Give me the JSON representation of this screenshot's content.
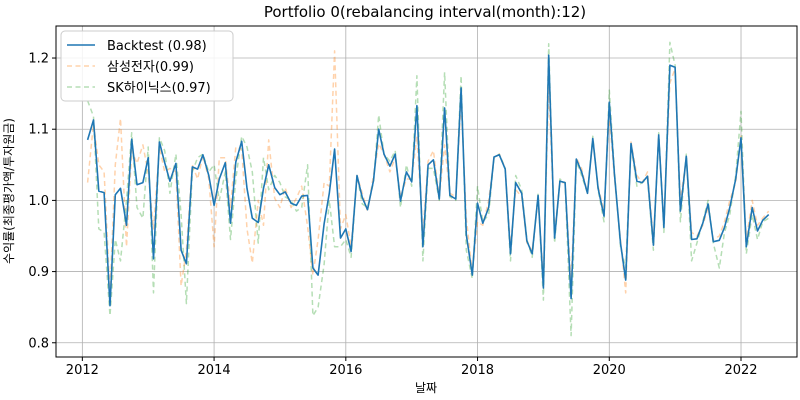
{
  "chart_data": {
    "type": "line",
    "title": "Portfolio 0(rebalancing interval(month):12)",
    "xlabel": "날짜",
    "ylabel": "수익률(최종평가액/투자원금)",
    "xlim": [
      2011.6,
      2022.85
    ],
    "ylim": [
      0.78,
      1.245
    ],
    "xticks": [
      2012,
      2014,
      2016,
      2018,
      2020,
      2022
    ],
    "yticks": [
      0.8,
      0.9,
      1.0,
      1.1,
      1.2
    ],
    "ytick_labels": [
      "0.8",
      "0.9",
      "1.0",
      "1.1",
      "1.2"
    ],
    "grid": true,
    "legend_position": "upper-left",
    "series": [
      {
        "name": "Backtest (0.98)",
        "color": "#1f77b4",
        "style": "solid",
        "x": [
          2012.08,
          2012.17,
          2012.25,
          2012.33,
          2012.42,
          2012.5,
          2012.58,
          2012.67,
          2012.75,
          2012.83,
          2012.92,
          2013.0,
          2013.08,
          2013.17,
          2013.25,
          2013.33,
          2013.42,
          2013.5,
          2013.58,
          2013.67,
          2013.75,
          2013.83,
          2013.92,
          2014.0,
          2014.08,
          2014.17,
          2014.25,
          2014.33,
          2014.42,
          2014.5,
          2014.58,
          2014.67,
          2014.75,
          2014.83,
          2014.92,
          2015.0,
          2015.08,
          2015.17,
          2015.25,
          2015.33,
          2015.42,
          2015.5,
          2015.58,
          2015.67,
          2015.75,
          2015.83,
          2015.92,
          2016.0,
          2016.08,
          2016.17,
          2016.25,
          2016.33,
          2016.42,
          2016.5,
          2016.58,
          2016.67,
          2016.75,
          2016.83,
          2016.92,
          2017.0,
          2017.08,
          2017.17,
          2017.25,
          2017.33,
          2017.42,
          2017.5,
          2017.58,
          2017.67,
          2017.75,
          2017.83,
          2017.92,
          2018.0,
          2018.08,
          2018.17,
          2018.25,
          2018.33,
          2018.42,
          2018.5,
          2018.58,
          2018.67,
          2018.75,
          2018.83,
          2018.92,
          2019.0,
          2019.08,
          2019.17,
          2019.25,
          2019.33,
          2019.42,
          2019.5,
          2019.58,
          2019.67,
          2019.75,
          2019.83,
          2019.92,
          2020.0,
          2020.08,
          2020.17,
          2020.25,
          2020.33,
          2020.42,
          2020.5,
          2020.58,
          2020.67,
          2020.75,
          2020.83,
          2020.92,
          2021.0,
          2021.08,
          2021.17,
          2021.25,
          2021.33,
          2021.42,
          2021.5,
          2021.58,
          2021.67,
          2021.75,
          2021.83,
          2021.92,
          2022.0,
          2022.08,
          2022.17,
          2022.25,
          2022.33,
          2022.42
        ],
        "values": [
          1.085,
          1.113,
          1.013,
          1.011,
          0.852,
          1.008,
          1.017,
          0.965,
          1.086,
          1.022,
          1.025,
          1.06,
          0.918,
          1.082,
          1.053,
          1.027,
          1.052,
          0.93,
          0.911,
          1.047,
          1.044,
          1.064,
          1.035,
          0.993,
          1.03,
          1.053,
          0.968,
          1.054,
          1.083,
          1.017,
          0.975,
          0.969,
          1.017,
          1.05,
          1.018,
          1.008,
          1.012,
          0.996,
          0.993,
          1.006,
          1.007,
          0.905,
          0.895,
          0.967,
          1.01,
          1.072,
          0.947,
          0.96,
          0.928,
          1.035,
          1.004,
          0.987,
          1.028,
          1.1,
          1.065,
          1.048,
          1.065,
          0.999,
          1.04,
          1.026,
          1.133,
          0.935,
          1.05,
          1.057,
          1.002,
          1.13,
          1.007,
          1.002,
          1.158,
          0.952,
          0.895,
          0.996,
          0.968,
          0.99,
          1.061,
          1.064,
          1.044,
          0.925,
          1.025,
          1.01,
          0.943,
          0.925,
          1.007,
          0.877,
          1.204,
          0.947,
          1.027,
          1.025,
          0.862,
          1.058,
          1.04,
          1.01,
          1.087,
          1.017,
          0.978,
          1.138,
          1.036,
          0.94,
          0.888,
          1.08,
          1.027,
          1.025,
          1.034,
          0.937,
          1.092,
          0.962,
          1.19,
          1.187,
          0.985,
          1.062,
          0.945,
          0.946,
          0.968,
          0.995,
          0.942,
          0.944,
          0.962,
          0.99,
          1.03,
          1.088,
          0.935,
          0.99,
          0.957,
          0.972,
          0.98
        ]
      },
      {
        "name": "삼성전자(0.99)",
        "color": "#ff7f0e",
        "style": "dashed",
        "x": [
          2012.08,
          2012.17,
          2012.25,
          2012.33,
          2012.42,
          2012.5,
          2012.58,
          2012.67,
          2012.75,
          2012.83,
          2012.92,
          2013.0,
          2013.08,
          2013.17,
          2013.25,
          2013.33,
          2013.42,
          2013.5,
          2013.58,
          2013.67,
          2013.75,
          2013.83,
          2013.92,
          2014.0,
          2014.08,
          2014.17,
          2014.25,
          2014.33,
          2014.42,
          2014.5,
          2014.58,
          2014.67,
          2014.75,
          2014.83,
          2014.92,
          2015.0,
          2015.08,
          2015.17,
          2015.25,
          2015.33,
          2015.42,
          2015.5,
          2015.58,
          2015.67,
          2015.75,
          2015.83,
          2015.92,
          2016.0,
          2016.08,
          2016.17,
          2016.25,
          2016.33,
          2016.42,
          2016.5,
          2016.58,
          2016.67,
          2016.75,
          2016.83,
          2016.92,
          2017.0,
          2017.08,
          2017.17,
          2017.25,
          2017.33,
          2017.42,
          2017.5,
          2017.58,
          2017.67,
          2017.75,
          2017.83,
          2017.92,
          2018.0,
          2018.08,
          2018.17,
          2018.25,
          2018.33,
          2018.42,
          2018.5,
          2018.58,
          2018.67,
          2018.75,
          2018.83,
          2018.92,
          2019.0,
          2019.08,
          2019.17,
          2019.25,
          2019.33,
          2019.42,
          2019.5,
          2019.58,
          2019.67,
          2019.75,
          2019.83,
          2019.92,
          2020.0,
          2020.08,
          2020.17,
          2020.25,
          2020.33,
          2020.42,
          2020.5,
          2020.58,
          2020.67,
          2020.75,
          2020.83,
          2020.92,
          2021.0,
          2021.08,
          2021.17,
          2021.25,
          2021.33,
          2021.42,
          2021.5,
          2021.58,
          2021.67,
          2021.75,
          2021.83,
          2021.92,
          2022.0,
          2022.08,
          2022.17,
          2022.25,
          2022.33,
          2022.42
        ],
        "values": [
          1.025,
          1.108,
          1.05,
          1.04,
          0.87,
          1.05,
          1.115,
          0.935,
          1.07,
          1.052,
          1.078,
          1.038,
          0.96,
          1.075,
          1.04,
          1.045,
          1.04,
          0.88,
          0.93,
          1.05,
          1.03,
          1.063,
          1.03,
          0.935,
          1.06,
          1.06,
          0.99,
          1.075,
          1.072,
          0.96,
          0.912,
          1.0,
          0.965,
          1.085,
          1.003,
          0.99,
          1.018,
          0.99,
          1.003,
          1.02,
          0.963,
          0.895,
          0.945,
          1.025,
          1.02,
          1.21,
          0.96,
          0.98,
          0.935,
          1.035,
          1.01,
          0.985,
          1.035,
          1.08,
          1.065,
          1.04,
          1.06,
          1.005,
          1.03,
          1.03,
          1.09,
          0.955,
          1.055,
          1.07,
          1.005,
          1.078,
          1.01,
          1.005,
          1.14,
          0.975,
          0.898,
          0.97,
          0.965,
          1.0,
          1.06,
          1.065,
          1.045,
          0.935,
          1.015,
          1.005,
          0.94,
          0.93,
          1.002,
          0.89,
          1.16,
          0.955,
          1.025,
          1.025,
          0.885,
          1.06,
          1.045,
          1.01,
          1.085,
          1.02,
          0.985,
          1.12,
          1.03,
          0.945,
          0.87,
          1.082,
          1.035,
          1.025,
          1.04,
          0.945,
          1.09,
          0.97,
          1.165,
          1.185,
          1.0,
          1.06,
          0.955,
          0.95,
          0.965,
          0.99,
          0.945,
          0.95,
          0.97,
          1.0,
          1.025,
          1.09,
          0.945,
          1.0,
          0.965,
          0.975,
          0.985
        ]
      },
      {
        "name": "SK하이닉스(0.97)",
        "color": "#2ca02c",
        "style": "dashed",
        "x": [
          2012.08,
          2012.17,
          2012.25,
          2012.33,
          2012.42,
          2012.5,
          2012.58,
          2012.67,
          2012.75,
          2012.83,
          2012.92,
          2013.0,
          2013.08,
          2013.17,
          2013.25,
          2013.33,
          2013.42,
          2013.5,
          2013.58,
          2013.67,
          2013.75,
          2013.83,
          2013.92,
          2014.0,
          2014.08,
          2014.17,
          2014.25,
          2014.33,
          2014.42,
          2014.5,
          2014.58,
          2014.67,
          2014.75,
          2014.83,
          2014.92,
          2015.0,
          2015.08,
          2015.17,
          2015.25,
          2015.33,
          2015.42,
          2015.5,
          2015.58,
          2015.67,
          2015.75,
          2015.83,
          2015.92,
          2016.0,
          2016.08,
          2016.17,
          2016.25,
          2016.33,
          2016.42,
          2016.5,
          2016.58,
          2016.67,
          2016.75,
          2016.83,
          2016.92,
          2017.0,
          2017.08,
          2017.17,
          2017.25,
          2017.33,
          2017.42,
          2017.5,
          2017.58,
          2017.67,
          2017.75,
          2017.83,
          2017.92,
          2018.0,
          2018.08,
          2018.17,
          2018.25,
          2018.33,
          2018.42,
          2018.5,
          2018.58,
          2018.67,
          2018.75,
          2018.83,
          2018.92,
          2019.0,
          2019.08,
          2019.17,
          2019.25,
          2019.33,
          2019.42,
          2019.5,
          2019.58,
          2019.67,
          2019.75,
          2019.83,
          2019.92,
          2020.0,
          2020.08,
          2020.17,
          2020.25,
          2020.33,
          2020.42,
          2020.5,
          2020.58,
          2020.67,
          2020.75,
          2020.83,
          2020.92,
          2021.0,
          2021.08,
          2021.17,
          2021.25,
          2021.33,
          2021.42,
          2021.5,
          2021.58,
          2021.67,
          2021.75,
          2021.83,
          2021.92,
          2022.0,
          2022.08,
          2022.17,
          2022.25,
          2022.33,
          2022.42
        ],
        "values": [
          1.14,
          1.118,
          0.96,
          0.955,
          0.838,
          0.945,
          0.915,
          1.0,
          1.095,
          0.99,
          0.975,
          1.075,
          0.87,
          1.088,
          1.07,
          1.01,
          1.065,
          0.98,
          0.855,
          1.04,
          1.06,
          1.065,
          1.04,
          1.05,
          1.0,
          1.04,
          0.945,
          1.03,
          1.09,
          1.075,
          1.04,
          0.94,
          1.06,
          1.015,
          1.035,
          1.025,
          1.005,
          1.0,
          0.985,
          0.99,
          1.05,
          0.838,
          0.85,
          0.91,
          1.0,
          0.935,
          0.935,
          0.945,
          0.92,
          1.035,
          0.995,
          0.99,
          1.025,
          1.12,
          1.065,
          1.055,
          1.07,
          0.99,
          1.05,
          1.02,
          1.175,
          0.915,
          1.045,
          1.045,
          1.0,
          1.18,
          1.005,
          1.0,
          1.175,
          0.93,
          0.89,
          1.02,
          0.97,
          0.98,
          1.06,
          1.065,
          1.045,
          0.915,
          1.035,
          1.015,
          0.945,
          0.92,
          1.01,
          0.86,
          1.22,
          0.94,
          1.03,
          1.025,
          0.81,
          1.055,
          1.035,
          1.01,
          1.09,
          1.015,
          0.97,
          1.155,
          1.04,
          0.935,
          0.905,
          1.078,
          1.02,
          1.025,
          1.03,
          0.93,
          1.095,
          0.955,
          1.222,
          1.19,
          0.97,
          1.065,
          0.915,
          0.94,
          0.97,
          1.0,
          0.94,
          0.905,
          0.955,
          0.98,
          1.035,
          1.125,
          0.925,
          0.98,
          0.945,
          0.97,
          0.975
        ]
      }
    ]
  }
}
